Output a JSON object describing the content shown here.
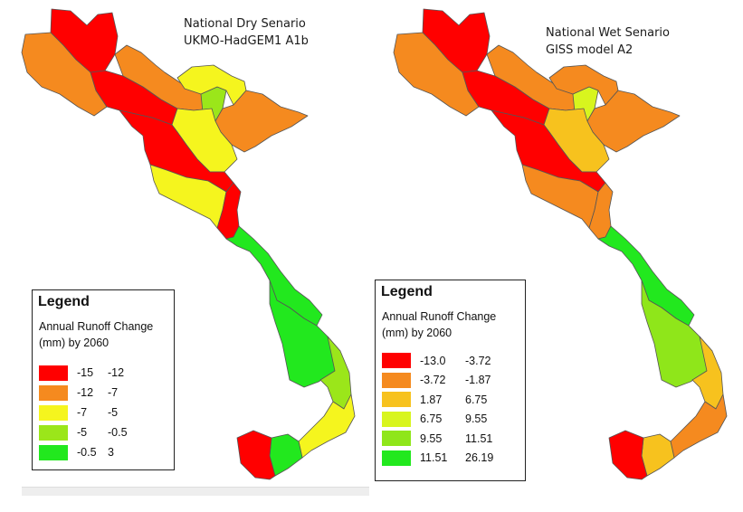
{
  "maps": {
    "left": {
      "title_line1": "National Dry Senario",
      "title_line2": "UKMO-HadGEM1 A1b",
      "legend": {
        "title": "Legend",
        "subtitle_line1": "Annual Runoff Change",
        "subtitle_line2": "(mm) by 2060",
        "classes": [
          {
            "low": "-15",
            "high": "-12",
            "color": "#ff0000"
          },
          {
            "low": "-12",
            "high": "-7",
            "color": "#f58a1f"
          },
          {
            "low": "-7",
            "high": "-5",
            "color": "#f5f51e"
          },
          {
            "low": "-5",
            "high": "-0.5",
            "color": "#9be61a"
          },
          {
            "low": "-0.5",
            "high": "3",
            "color": "#22e81e"
          }
        ]
      },
      "regions": [
        {
          "name": "far-northwest",
          "class": 0
        },
        {
          "name": "northwest-west",
          "class": 1
        },
        {
          "name": "northwest-central",
          "class": 0
        },
        {
          "name": "north-central",
          "class": 1
        },
        {
          "name": "northeast-small",
          "class": 3
        },
        {
          "name": "northeast-upper",
          "class": 2
        },
        {
          "name": "northeast-east",
          "class": 1
        },
        {
          "name": "red-river-delta",
          "class": 2
        },
        {
          "name": "north-central-coast",
          "class": 0
        },
        {
          "name": "thanh-hoa-nghe-an",
          "class": 2
        },
        {
          "name": "north-coast-strip",
          "class": 0
        },
        {
          "name": "central-coast",
          "class": 4
        },
        {
          "name": "central-highlands",
          "class": 4
        },
        {
          "name": "south-central-east",
          "class": 3
        },
        {
          "name": "southeast",
          "class": 2
        },
        {
          "name": "mekong-delta",
          "class": 4
        },
        {
          "name": "ca-mau",
          "class": 0
        }
      ]
    },
    "right": {
      "title_line1": "National Wet Senario",
      "title_line2": "GISS model A2",
      "legend": {
        "title": "Legend",
        "subtitle_line1": "Annual Runoff Change",
        "subtitle_line2": "(mm) by 2060",
        "classes": [
          {
            "low": "-13.0",
            "high": "-3.72",
            "color": "#ff0000"
          },
          {
            "low": "-3.72",
            "high": "-1.87",
            "color": "#f58a1f"
          },
          {
            "low": "1.87",
            "high": "6.75",
            "color": "#f7c21e"
          },
          {
            "low": "6.75",
            "high": "9.55",
            "color": "#d8f51e"
          },
          {
            "low": "9.55",
            "high": "11.51",
            "color": "#8fe61a"
          },
          {
            "low": "11.51",
            "high": "26.19",
            "color": "#22e81e"
          }
        ]
      },
      "regions": [
        {
          "name": "far-northwest",
          "class": 0
        },
        {
          "name": "northwest-west",
          "class": 1
        },
        {
          "name": "northwest-central",
          "class": 0
        },
        {
          "name": "north-central",
          "class": 1
        },
        {
          "name": "northeast-small",
          "class": 3
        },
        {
          "name": "northeast-upper",
          "class": 1
        },
        {
          "name": "northeast-east",
          "class": 1
        },
        {
          "name": "red-river-delta",
          "class": 2
        },
        {
          "name": "north-central-coast",
          "class": 0
        },
        {
          "name": "thanh-hoa-nghe-an",
          "class": 1
        },
        {
          "name": "north-coast-strip",
          "class": 1
        },
        {
          "name": "central-coast",
          "class": 5
        },
        {
          "name": "central-highlands",
          "class": 4
        },
        {
          "name": "south-central-east",
          "class": 2
        },
        {
          "name": "southeast",
          "class": 1
        },
        {
          "name": "mekong-delta",
          "class": 2
        },
        {
          "name": "ca-mau",
          "class": 0
        }
      ]
    }
  }
}
